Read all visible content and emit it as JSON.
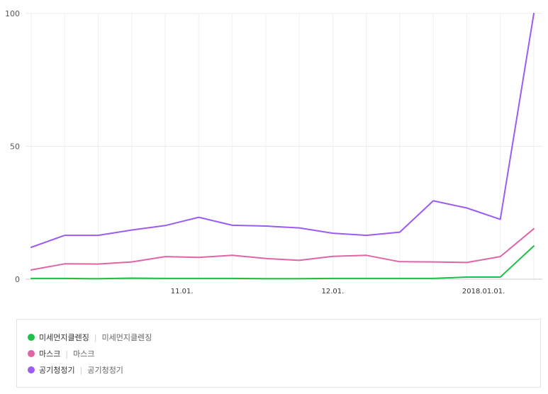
{
  "chart_data": {
    "type": "line",
    "y_ticks": [
      "0",
      "50",
      "100"
    ],
    "ylim": [
      0,
      100
    ],
    "x_tick_labels": [
      "11.01.",
      "12.01.",
      "2018.01.01."
    ],
    "x_tick_positions": [
      4.5,
      9,
      13.5
    ],
    "grid": true,
    "series": [
      {
        "name": "미세먼지클렌징",
        "color": "#1fbf4a",
        "values": [
          0.3,
          0.3,
          0.2,
          0.4,
          0.3,
          0.3,
          0.3,
          0.2,
          0.2,
          0.3,
          0.3,
          0.3,
          0.3,
          0.8,
          0.8,
          12.5
        ]
      },
      {
        "name": "마스크",
        "color": "#e064a8",
        "values": [
          3.5,
          5.8,
          5.7,
          6.5,
          8.5,
          8.2,
          9.0,
          7.8,
          7.1,
          8.6,
          9.0,
          6.6,
          6.5,
          6.3,
          8.5,
          19.0
        ]
      },
      {
        "name": "공기청정기",
        "color": "#9b5cf2",
        "values": [
          12.0,
          16.5,
          16.5,
          18.5,
          20.2,
          23.3,
          20.3,
          20.0,
          19.3,
          17.3,
          16.5,
          17.7,
          29.5,
          26.8,
          22.5,
          100.0
        ]
      }
    ]
  },
  "legend": [
    {
      "label": "미세먼지클렌징",
      "sub": "미세먼지클렌징",
      "color": "#1fbf4a"
    },
    {
      "label": "마스크",
      "sub": "마스크",
      "color": "#e064a8"
    },
    {
      "label": "공기청정기",
      "sub": "공기청정기",
      "color": "#9b5cf2"
    }
  ]
}
